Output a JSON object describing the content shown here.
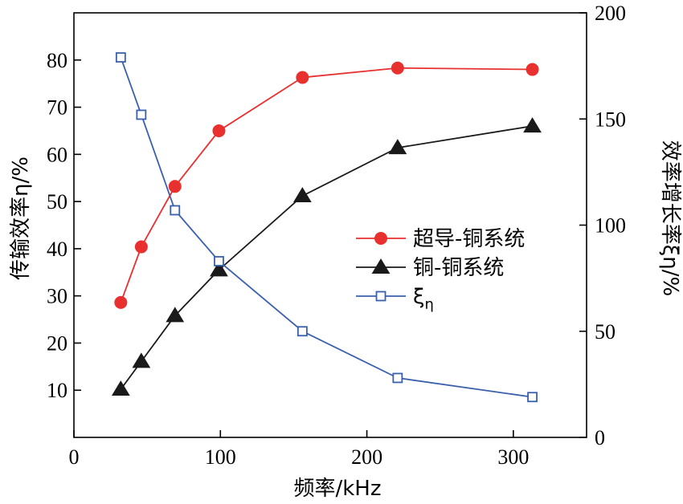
{
  "chart_data": {
    "type": "line",
    "xlabel": "频率/kHz",
    "ylabel": "传输效率η/%",
    "y2label": "效率增长率ξη/%",
    "xlim": [
      0,
      350
    ],
    "ylim": [
      0,
      90
    ],
    "y2lim": [
      0,
      200
    ],
    "xticks": [
      "0",
      "100",
      "200",
      "300"
    ],
    "yticks": [
      "10",
      "20",
      "30",
      "40",
      "50",
      "60",
      "70",
      "80"
    ],
    "y2ticks": [
      "0",
      "50",
      "100",
      "150",
      "200"
    ],
    "legend_position": "center-right",
    "series": [
      {
        "name": "超导-铜系统",
        "axis": "left",
        "color": "#e8312f",
        "marker": "filled-circle",
        "x": [
          32,
          46,
          69,
          99,
          156,
          221,
          313
        ],
        "y": [
          28.6,
          40.4,
          53.2,
          65.0,
          76.3,
          78.3,
          78.0
        ]
      },
      {
        "name": "铜-铜系统",
        "axis": "left",
        "color": "#1a1a1a",
        "marker": "filled-triangle",
        "x": [
          32,
          46,
          69,
          99,
          156,
          221,
          313
        ],
        "y": [
          10.2,
          16.1,
          25.8,
          35.5,
          51.2,
          61.4,
          66.0
        ]
      },
      {
        "name": "ξ",
        "name_sub": "η",
        "axis": "right",
        "color": "#3a60ad",
        "marker": "open-square",
        "x": [
          32,
          46,
          69,
          99,
          156,
          221,
          313
        ],
        "y": [
          179,
          152,
          107,
          83,
          50,
          28,
          19
        ]
      }
    ]
  }
}
